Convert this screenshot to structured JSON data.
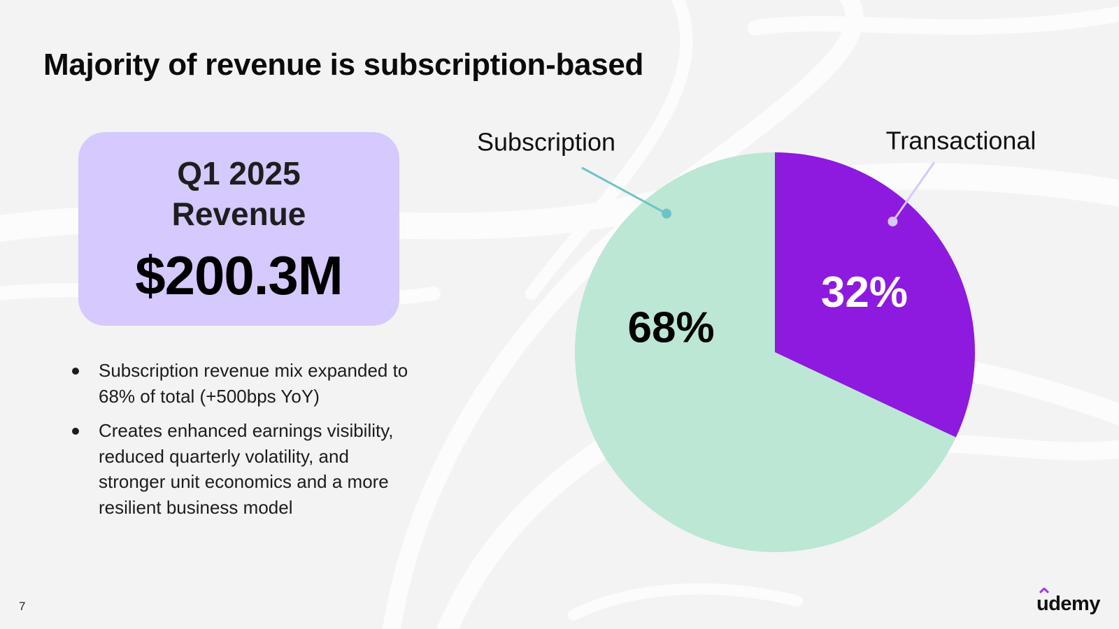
{
  "title": "Majority of revenue is subscription-based",
  "kpi": {
    "label_line1": "Q1 2025",
    "label_line2": "Revenue",
    "value": "$200.3M"
  },
  "bullets": [
    {
      "text": "Subscription revenue mix expanded to 68% of total (+500bps YoY)"
    },
    {
      "text": "Creates enhanced earnings visibility, reduced quarterly volatility, and stronger unit economics and a more resilient business model"
    }
  ],
  "page_number": "7",
  "brand": {
    "logo_text": "udemy"
  },
  "colors": {
    "background": "#f3f3f3",
    "card": "#d5c9fd",
    "subscription": "#bbe7d4",
    "transactional": "#8e19df",
    "subscription_leader": "#6ec3c9",
    "transactional_leader": "#d5c9fd"
  },
  "chart_data": {
    "type": "pie",
    "title": "",
    "categories": [
      "Subscription",
      "Transactional"
    ],
    "values": [
      68,
      32
    ],
    "data_labels": [
      "68%",
      "32%"
    ],
    "colors": [
      "#bbe7d4",
      "#8e19df"
    ],
    "label_colors": [
      "#000000",
      "#ffffff"
    ],
    "legend": "callout labels with leader lines"
  }
}
